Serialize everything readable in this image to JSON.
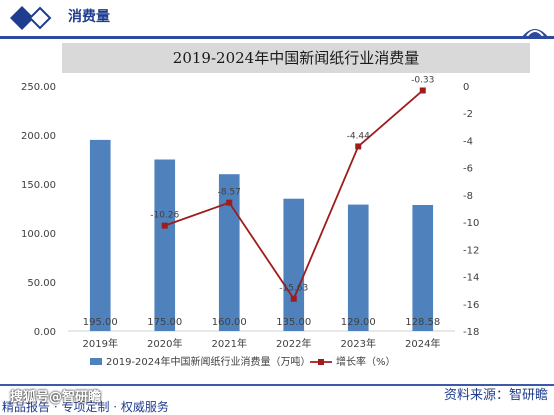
{
  "header": {
    "title": "消费量"
  },
  "footer": {
    "source": "资料来源：智研瞻",
    "tagline": "精品报告 · 专项定制 · 权威服务",
    "watermark": "搜狐号@智研瞻"
  },
  "colors": {
    "bar": "#4f81bd",
    "line": "#9e1c1c",
    "brand": "#2e4a9e"
  },
  "chart_data": {
    "type": "bar",
    "title": "2019-2024年中国新闻纸行业消费量",
    "categories": [
      "2019年",
      "2020年",
      "2021年",
      "2022年",
      "2023年",
      "2024年"
    ],
    "series": [
      {
        "name": "2019-2024年中国新闻纸行业消费量（万吨）",
        "type": "bar",
        "axis": "left",
        "values": [
          195.0,
          175.0,
          160.0,
          135.0,
          129.0,
          128.58
        ],
        "labels": [
          "195.00",
          "175.00",
          "160.00",
          "135.00",
          "129.00",
          "128.58"
        ]
      },
      {
        "name": "增长率（%）",
        "type": "line",
        "axis": "right",
        "values": [
          null,
          -10.26,
          -8.57,
          -15.63,
          -4.44,
          -0.33
        ],
        "labels": [
          "",
          "-10.26",
          "-8.57",
          "-15.63",
          "-4.44",
          "-0.33"
        ]
      }
    ],
    "left_axis": {
      "ylim": [
        0,
        250
      ],
      "ticks": [
        "0.00",
        "50.00",
        "100.00",
        "150.00",
        "200.00",
        "250.00"
      ]
    },
    "right_axis": {
      "ylim": [
        -18,
        0
      ],
      "ticks": [
        "0",
        "-2",
        "-4",
        "-6",
        "-8",
        "-10",
        "-12",
        "-14",
        "-16",
        "-18"
      ]
    },
    "legend": "bottom",
    "grid": false
  }
}
